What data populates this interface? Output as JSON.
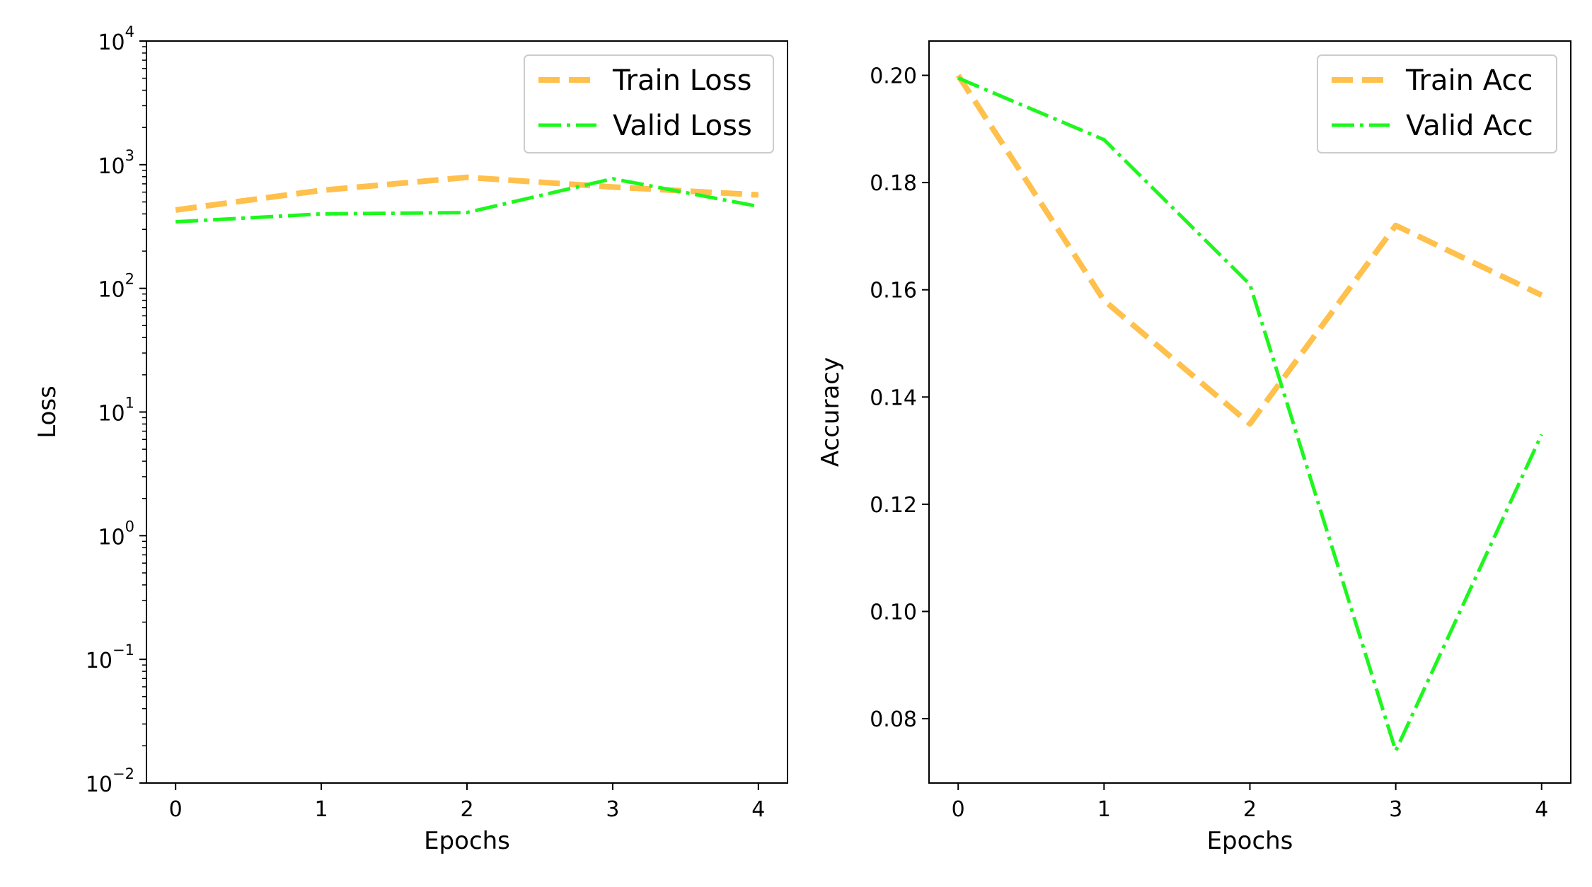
{
  "chart_data": [
    {
      "type": "line",
      "xlabel": "Epochs",
      "ylabel": "Loss",
      "yscale": "log",
      "x": [
        0,
        1,
        2,
        3,
        4
      ],
      "xticks": [
        "0",
        "1",
        "2",
        "3",
        "4"
      ],
      "xlim": [
        -0.2,
        4.2
      ],
      "ylim": [
        0.01,
        10000
      ],
      "yticks": [
        {
          "base": "10",
          "exp": "−2",
          "value": 0.01
        },
        {
          "base": "10",
          "exp": "−1",
          "value": 0.1
        },
        {
          "base": "10",
          "exp": "0",
          "value": 1
        },
        {
          "base": "10",
          "exp": "1",
          "value": 10
        },
        {
          "base": "10",
          "exp": "2",
          "value": 100
        },
        {
          "base": "10",
          "exp": "3",
          "value": 1000
        },
        {
          "base": "10",
          "exp": "4",
          "value": 10000
        }
      ],
      "legend_position": "top-right",
      "series": [
        {
          "name": "Train Loss",
          "values": [
            430,
            620,
            790,
            660,
            570
          ],
          "color": "#FFB733",
          "style": "dashed"
        },
        {
          "name": "Valid Loss",
          "values": [
            345,
            400,
            410,
            770,
            460
          ],
          "color": "#1EF71E",
          "style": "dashdot"
        }
      ]
    },
    {
      "type": "line",
      "xlabel": "Epochs",
      "ylabel": "Accuracy",
      "yscale": "linear",
      "x": [
        0,
        1,
        2,
        3,
        4
      ],
      "xticks": [
        "0",
        "1",
        "2",
        "3",
        "4"
      ],
      "xlim": [
        -0.2,
        4.2
      ],
      "ylim": [
        0.068,
        0.2064
      ],
      "yticks": [
        "0.08",
        "0.10",
        "0.12",
        "0.14",
        "0.16",
        "0.18",
        "0.20"
      ],
      "legend_position": "top-right",
      "series": [
        {
          "name": "Train Acc",
          "values": [
            0.2,
            0.158,
            0.135,
            0.172,
            0.159
          ],
          "color": "#FFB733",
          "style": "dashed"
        },
        {
          "name": "Valid Acc",
          "values": [
            0.1995,
            0.188,
            0.161,
            0.074,
            0.133
          ],
          "color": "#1EF71E",
          "style": "dashdot"
        }
      ]
    }
  ]
}
